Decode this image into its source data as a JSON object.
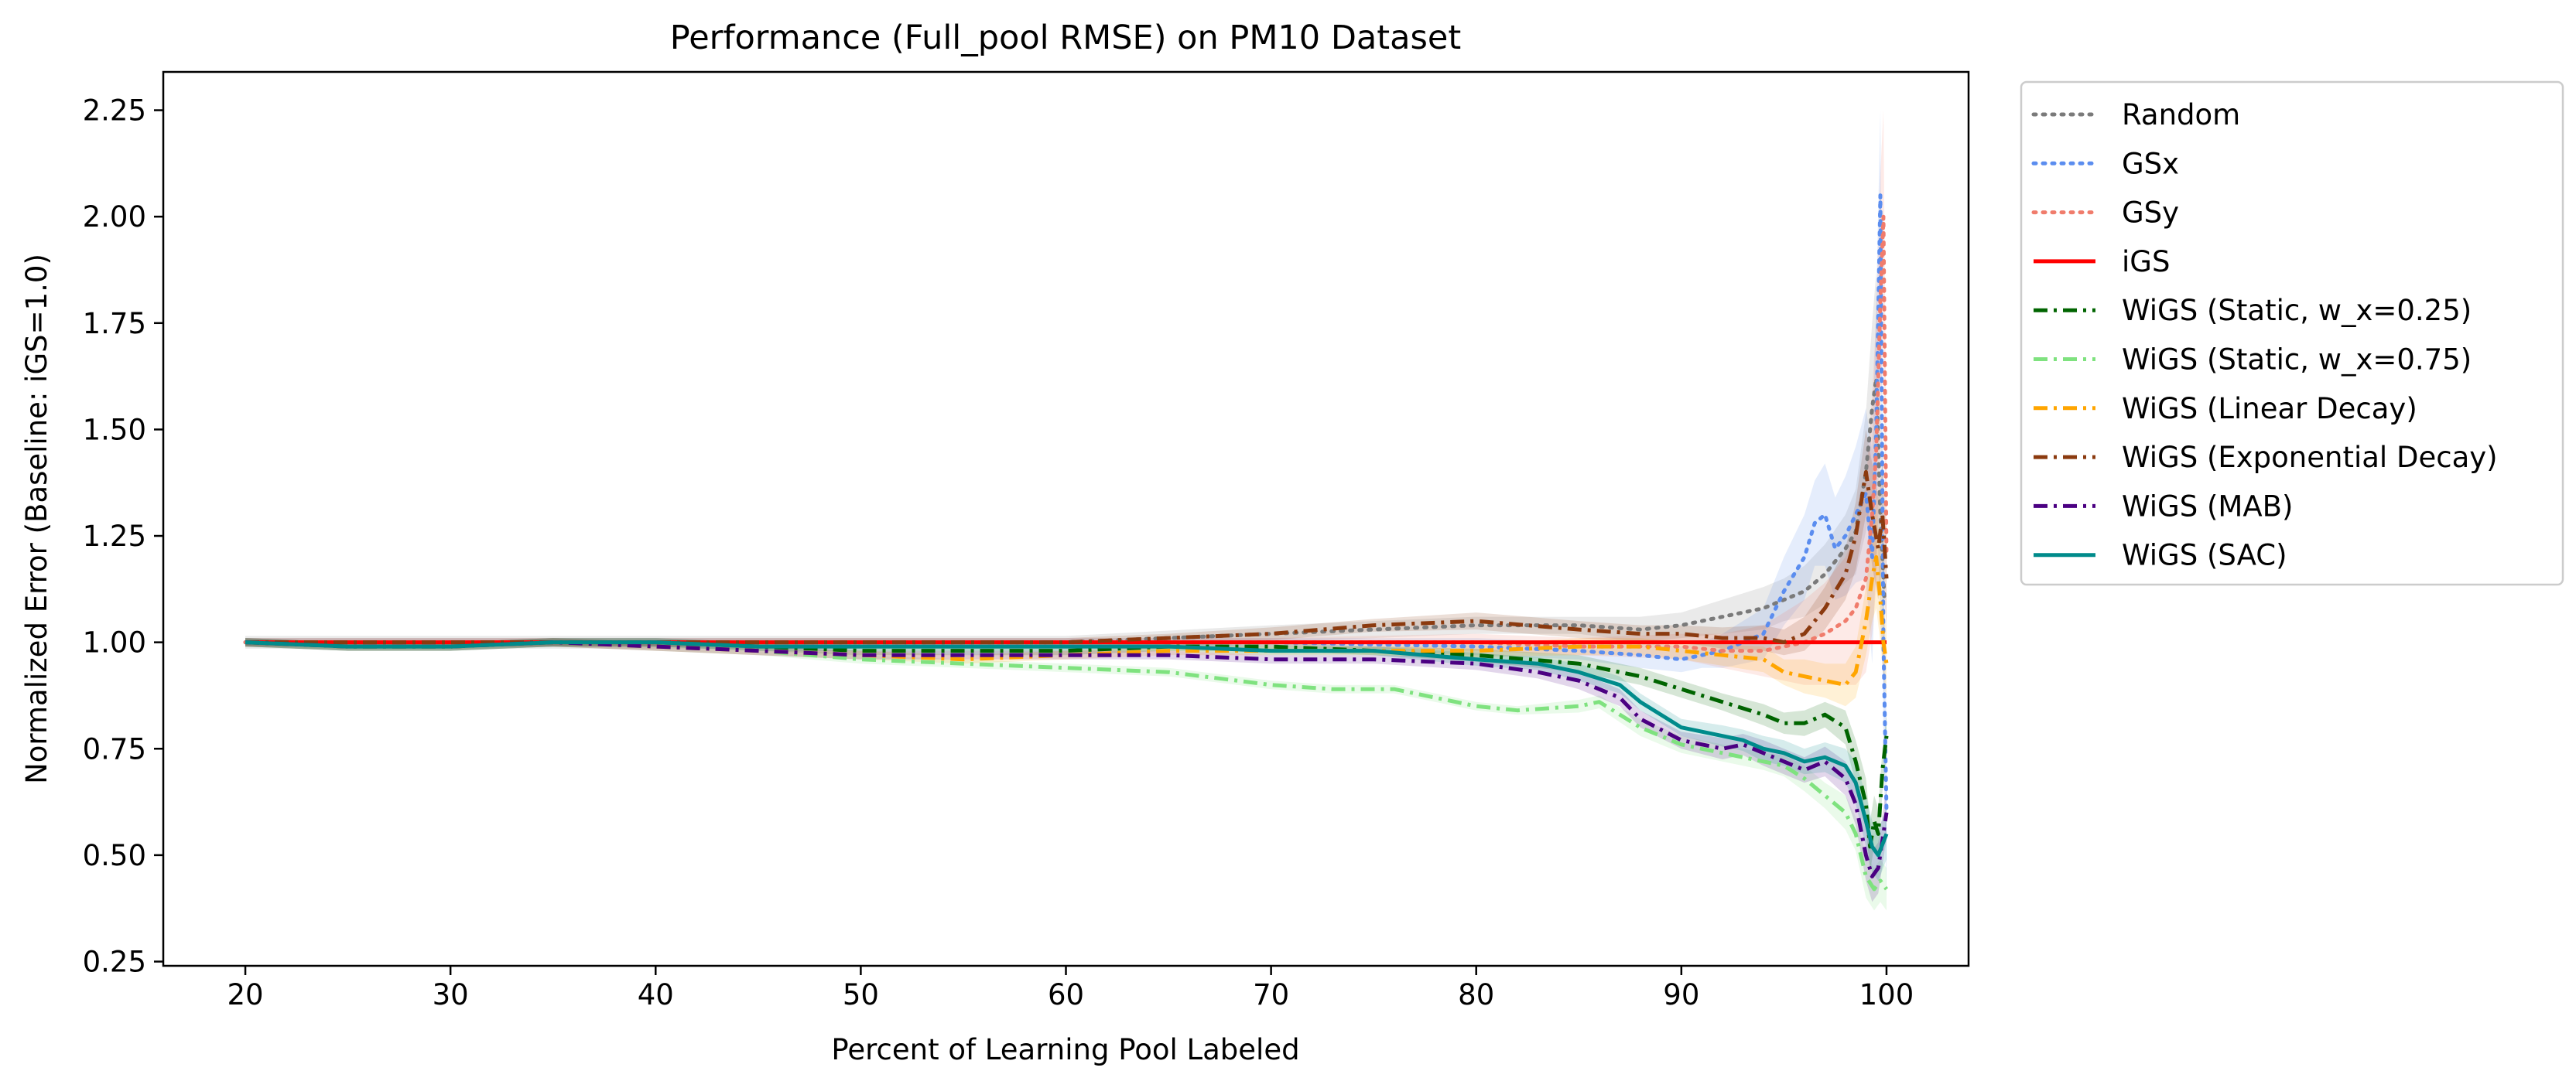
{
  "chart_data": {
    "type": "line",
    "title": "Performance (Full_pool RMSE) on PM10 Dataset",
    "xlabel": "Percent of Learning Pool Labeled",
    "ylabel": "Normalized Error (Baseline: iGS=1.0)",
    "xlim": [
      16,
      104
    ],
    "ylim": [
      0.24,
      2.34
    ],
    "xticks": [
      20,
      30,
      40,
      50,
      60,
      70,
      80,
      90,
      100
    ],
    "yticks": [
      0.25,
      0.5,
      0.75,
      1.0,
      1.25,
      1.5,
      1.75,
      2.0,
      2.25
    ],
    "xtick_labels": [
      "20",
      "30",
      "40",
      "50",
      "60",
      "70",
      "80",
      "90",
      "100"
    ],
    "ytick_labels": [
      "0.25",
      "0.50",
      "0.75",
      "1.00",
      "1.25",
      "1.50",
      "1.75",
      "2.00",
      "2.25"
    ],
    "grid": false,
    "legend_position": "outside-right-top",
    "series": [
      {
        "name": "Random",
        "color": "#7a7a7a",
        "style": "dotted",
        "x": [
          20,
          30,
          40,
          50,
          60,
          70,
          75,
          80,
          85,
          88,
          90,
          92,
          94,
          95,
          96,
          97,
          98,
          98.5,
          99,
          99.3,
          99.5,
          99.7,
          99.9
        ],
        "y": [
          1.0,
          1.0,
          1.0,
          1.0,
          1.0,
          1.02,
          1.03,
          1.04,
          1.04,
          1.03,
          1.04,
          1.06,
          1.08,
          1.1,
          1.12,
          1.16,
          1.22,
          1.26,
          1.4,
          1.55,
          1.62,
          1.3,
          1.1
        ],
        "band": [
          0.015,
          0.015,
          0.015,
          0.015,
          0.015,
          0.02,
          0.02,
          0.02,
          0.02,
          0.03,
          0.03,
          0.04,
          0.05,
          0.05,
          0.06,
          0.07,
          0.08,
          0.1,
          0.14,
          0.2,
          0.25,
          0.25,
          0.25
        ]
      },
      {
        "name": "GSx",
        "color": "#5b8def",
        "style": "dotted",
        "x": [
          20,
          30,
          40,
          50,
          60,
          70,
          80,
          85,
          88,
          90,
          91,
          92,
          93,
          94,
          95,
          96,
          96.5,
          97,
          97.5,
          98,
          98.5,
          99,
          99.3,
          99.5,
          99.7,
          99.85,
          100
        ],
        "y": [
          1.0,
          1.0,
          1.0,
          1.0,
          1.0,
          1.0,
          0.99,
          0.98,
          0.97,
          0.96,
          0.97,
          0.98,
          1.0,
          1.02,
          1.12,
          1.2,
          1.28,
          1.3,
          1.22,
          1.25,
          1.3,
          1.35,
          1.2,
          1.5,
          2.05,
          1.0,
          0.6
        ],
        "band": [
          0.01,
          0.01,
          0.01,
          0.01,
          0.01,
          0.01,
          0.02,
          0.02,
          0.03,
          0.03,
          0.03,
          0.04,
          0.05,
          0.06,
          0.08,
          0.1,
          0.1,
          0.12,
          0.12,
          0.14,
          0.16,
          0.2,
          0.25,
          0.3,
          0.2,
          0.25,
          0.2
        ]
      },
      {
        "name": "GSy",
        "color": "#f07c6c",
        "style": "dotted",
        "x": [
          20,
          30,
          40,
          50,
          60,
          70,
          80,
          85,
          90,
          92,
          94,
          95,
          96,
          97,
          98,
          98.5,
          99,
          99.3,
          99.5,
          99.7,
          99.85,
          100
        ],
        "y": [
          1.0,
          1.0,
          1.0,
          1.0,
          1.0,
          1.0,
          1.0,
          0.99,
          0.99,
          0.98,
          0.98,
          0.99,
          1.0,
          1.02,
          1.05,
          1.08,
          1.15,
          1.3,
          1.45,
          1.8,
          2.0,
          1.2
        ],
        "band": [
          0.01,
          0.01,
          0.01,
          0.01,
          0.01,
          0.01,
          0.02,
          0.02,
          0.03,
          0.04,
          0.06,
          0.08,
          0.1,
          0.12,
          0.15,
          0.18,
          0.22,
          0.28,
          0.32,
          0.3,
          0.25,
          0.2
        ]
      },
      {
        "name": "iGS",
        "color": "#ff0000",
        "style": "solid",
        "x": [
          20,
          100
        ],
        "y": [
          1.0,
          1.0
        ]
      },
      {
        "name": "WiGS (Static, w_x=0.25)",
        "color": "#006400",
        "style": "dashdot",
        "x": [
          20,
          25,
          30,
          35,
          40,
          45,
          50,
          55,
          60,
          65,
          70,
          75,
          80,
          85,
          88,
          90,
          92,
          94,
          95,
          96,
          97,
          98,
          98.5,
          99,
          99.2,
          99.4,
          99.6,
          99.8,
          100
        ],
        "y": [
          1.0,
          0.99,
          0.99,
          1.0,
          1.0,
          0.99,
          0.98,
          0.98,
          0.98,
          0.99,
          0.99,
          0.98,
          0.97,
          0.95,
          0.92,
          0.89,
          0.86,
          0.83,
          0.81,
          0.81,
          0.83,
          0.8,
          0.72,
          0.62,
          0.52,
          0.58,
          0.55,
          0.7,
          0.78
        ],
        "band": [
          0.01,
          0.01,
          0.01,
          0.01,
          0.01,
          0.01,
          0.01,
          0.01,
          0.01,
          0.01,
          0.01,
          0.01,
          0.015,
          0.02,
          0.02,
          0.02,
          0.02,
          0.025,
          0.025,
          0.03,
          0.03,
          0.04,
          0.05,
          0.06,
          0.06,
          0.06,
          0.06,
          0.05,
          0.05
        ]
      },
      {
        "name": "WiGS (Static, w_x=0.75)",
        "color": "#7fe27f",
        "style": "dashdot",
        "x": [
          20,
          25,
          30,
          35,
          40,
          45,
          50,
          55,
          60,
          65,
          70,
          73,
          76,
          80,
          82,
          85,
          86,
          88,
          90,
          92,
          94,
          95,
          96,
          97,
          98,
          98.5,
          99,
          99.4,
          99.7,
          100
        ],
        "y": [
          1.0,
          0.99,
          0.99,
          1.0,
          0.99,
          0.98,
          0.96,
          0.95,
          0.94,
          0.93,
          0.9,
          0.89,
          0.89,
          0.85,
          0.84,
          0.85,
          0.86,
          0.8,
          0.76,
          0.74,
          0.72,
          0.71,
          0.68,
          0.64,
          0.6,
          0.55,
          0.45,
          0.42,
          0.44,
          0.42
        ],
        "band": [
          0.01,
          0.01,
          0.01,
          0.01,
          0.01,
          0.01,
          0.01,
          0.01,
          0.01,
          0.01,
          0.01,
          0.01,
          0.01,
          0.01,
          0.01,
          0.015,
          0.015,
          0.02,
          0.02,
          0.02,
          0.02,
          0.025,
          0.03,
          0.03,
          0.04,
          0.04,
          0.05,
          0.05,
          0.05,
          0.05
        ]
      },
      {
        "name": "WiGS (Linear Decay)",
        "color": "#ffa500",
        "style": "dashdot",
        "x": [
          20,
          25,
          30,
          35,
          40,
          45,
          50,
          55,
          60,
          65,
          70,
          75,
          80,
          85,
          88,
          90,
          92,
          94,
          95,
          96,
          97,
          98,
          98.5,
          99,
          99.3,
          99.5,
          99.7,
          99.85,
          100
        ],
        "y": [
          1.0,
          0.99,
          0.99,
          1.0,
          0.99,
          0.98,
          0.97,
          0.96,
          0.97,
          0.98,
          0.98,
          0.98,
          0.98,
          0.99,
          0.99,
          0.98,
          0.97,
          0.96,
          0.93,
          0.92,
          0.91,
          0.9,
          0.93,
          1.05,
          1.15,
          1.2,
          1.1,
          1.0,
          0.95
        ],
        "band": [
          0.01,
          0.01,
          0.01,
          0.01,
          0.01,
          0.01,
          0.01,
          0.01,
          0.01,
          0.01,
          0.01,
          0.01,
          0.015,
          0.02,
          0.02,
          0.02,
          0.025,
          0.03,
          0.03,
          0.04,
          0.04,
          0.05,
          0.06,
          0.08,
          0.1,
          0.12,
          0.1,
          0.08,
          0.08
        ]
      },
      {
        "name": "WiGS (Exponential Decay)",
        "color": "#8b3a0f",
        "style": "dashdot",
        "x": [
          20,
          25,
          30,
          35,
          40,
          45,
          50,
          55,
          60,
          65,
          70,
          75,
          80,
          85,
          88,
          90,
          92,
          94,
          95,
          96,
          97,
          98,
          98.5,
          99,
          99.3,
          99.6,
          99.8,
          100
        ],
        "y": [
          1.0,
          1.0,
          1.0,
          1.0,
          1.0,
          1.0,
          1.0,
          1.0,
          1.0,
          1.01,
          1.02,
          1.04,
          1.05,
          1.03,
          1.02,
          1.02,
          1.01,
          1.01,
          1.0,
          1.02,
          1.08,
          1.16,
          1.25,
          1.4,
          1.3,
          1.22,
          1.3,
          1.15
        ],
        "band": [
          0.01,
          0.01,
          0.01,
          0.01,
          0.01,
          0.01,
          0.01,
          0.01,
          0.01,
          0.01,
          0.015,
          0.015,
          0.02,
          0.02,
          0.02,
          0.02,
          0.025,
          0.03,
          0.03,
          0.04,
          0.05,
          0.06,
          0.08,
          0.1,
          0.12,
          0.12,
          0.12,
          0.12
        ]
      },
      {
        "name": "WiGS (MAB)",
        "color": "#4b0082",
        "style": "dashdot",
        "x": [
          20,
          25,
          30,
          35,
          40,
          45,
          50,
          55,
          60,
          65,
          70,
          75,
          80,
          83,
          85,
          87,
          88,
          90,
          92,
          93,
          94,
          95,
          96,
          97,
          98,
          98.5,
          99,
          99.3,
          99.6,
          100
        ],
        "y": [
          1.0,
          0.99,
          0.99,
          1.0,
          0.99,
          0.98,
          0.97,
          0.97,
          0.97,
          0.97,
          0.96,
          0.96,
          0.95,
          0.93,
          0.91,
          0.87,
          0.82,
          0.77,
          0.75,
          0.76,
          0.74,
          0.72,
          0.7,
          0.72,
          0.68,
          0.62,
          0.5,
          0.45,
          0.47,
          0.6
        ],
        "band": [
          0.01,
          0.01,
          0.01,
          0.01,
          0.01,
          0.01,
          0.01,
          0.01,
          0.01,
          0.01,
          0.01,
          0.01,
          0.015,
          0.015,
          0.02,
          0.02,
          0.02,
          0.02,
          0.025,
          0.025,
          0.03,
          0.03,
          0.03,
          0.035,
          0.04,
          0.05,
          0.06,
          0.06,
          0.06,
          0.06
        ]
      },
      {
        "name": "WiGS (SAC)",
        "color": "#008b8b",
        "style": "solid",
        "x": [
          20,
          25,
          30,
          35,
          40,
          45,
          50,
          55,
          60,
          65,
          70,
          75,
          80,
          83,
          85,
          87,
          88,
          90,
          92,
          93,
          94,
          95,
          96,
          97,
          98,
          98.5,
          99,
          99.3,
          99.6,
          100
        ],
        "y": [
          1.0,
          0.99,
          0.99,
          1.0,
          1.0,
          0.99,
          0.99,
          0.99,
          0.99,
          0.99,
          0.98,
          0.98,
          0.96,
          0.95,
          0.93,
          0.9,
          0.86,
          0.8,
          0.78,
          0.77,
          0.75,
          0.74,
          0.72,
          0.73,
          0.71,
          0.67,
          0.58,
          0.52,
          0.5,
          0.55
        ],
        "band": [
          0.01,
          0.01,
          0.01,
          0.01,
          0.01,
          0.01,
          0.01,
          0.01,
          0.01,
          0.01,
          0.01,
          0.01,
          0.015,
          0.015,
          0.02,
          0.02,
          0.02,
          0.02,
          0.025,
          0.025,
          0.03,
          0.03,
          0.03,
          0.035,
          0.04,
          0.05,
          0.06,
          0.06,
          0.06,
          0.06
        ]
      }
    ]
  }
}
